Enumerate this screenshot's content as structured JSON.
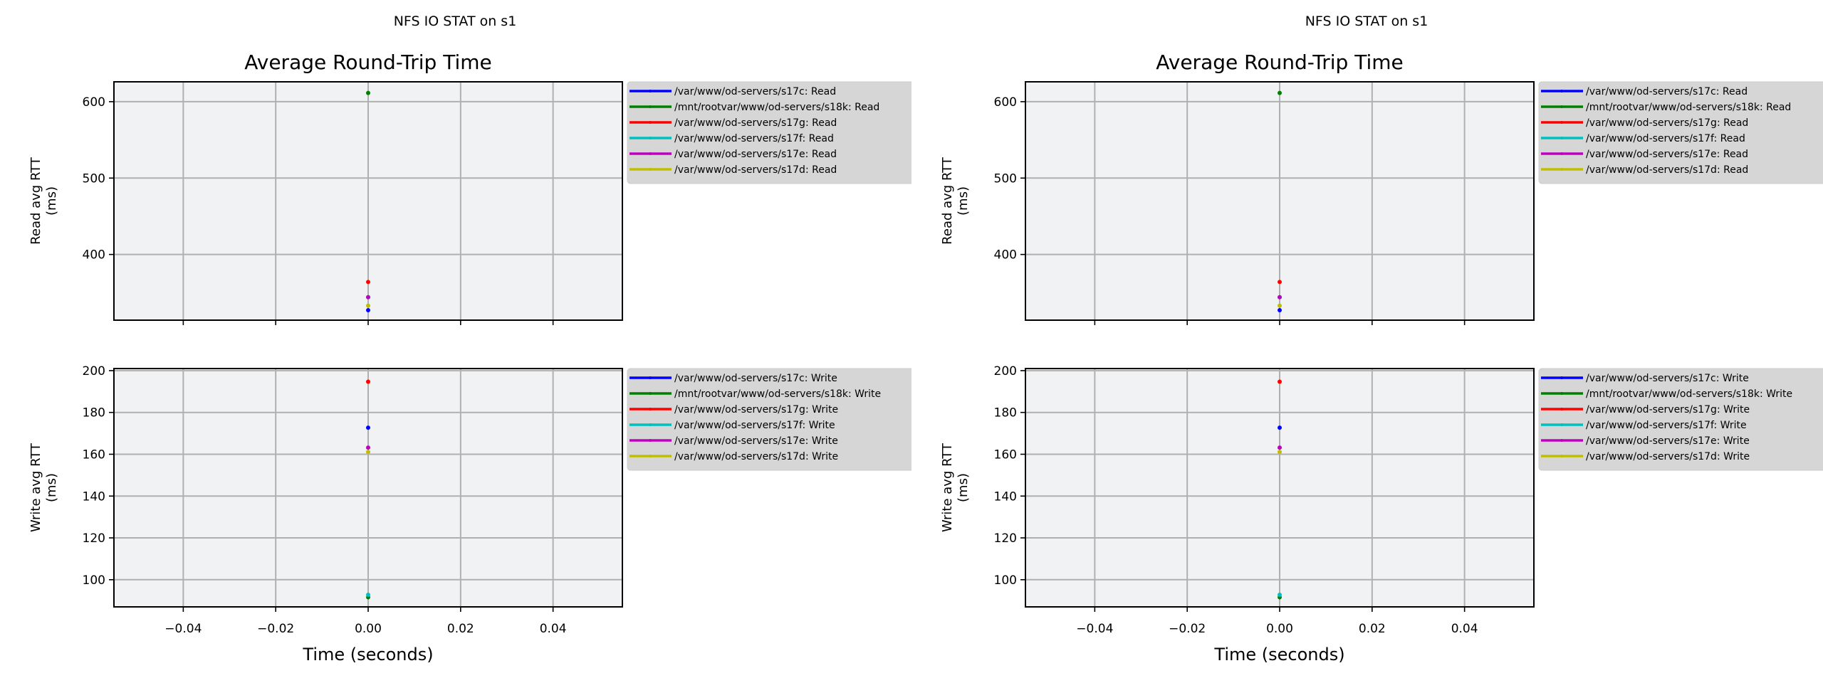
{
  "chart_data": [
    {
      "type": "scatter",
      "suptitle": "NFS IO STAT on s1",
      "title": "Average Round-Trip Time",
      "xlabel": "Time (seconds)",
      "xlim": [
        -0.055,
        0.055
      ],
      "xticks": [
        -0.04,
        -0.02,
        0.0,
        0.02,
        0.04
      ],
      "xtick_labels": [
        "−0.04",
        "−0.02",
        "0.00",
        "0.02",
        "0.04"
      ],
      "grid": true,
      "legend_placement": "outside-right",
      "subplots": [
        {
          "ylabel": [
            "Read avg RTT",
            "(ms)"
          ],
          "ylim": [
            314,
            626
          ],
          "yticks": [
            400,
            500,
            600
          ],
          "series": [
            {
              "name": "/var/www/od-servers/s17c: Read",
              "color": "#0000ff",
              "x": [
                0
              ],
              "y": [
                327
              ]
            },
            {
              "name": "/mnt/rootvar/www/od-servers/s18k: Read",
              "color": "#008000",
              "x": [
                0
              ],
              "y": [
                611.5
              ]
            },
            {
              "name": "/var/www/od-servers/s17g: Read",
              "color": "#ff0000",
              "x": [
                0
              ],
              "y": [
                364
              ]
            },
            {
              "name": "/var/www/od-servers/s17f: Read",
              "color": "#00bfbf",
              "x": [
                0
              ],
              "y": [
                344
              ]
            },
            {
              "name": "/var/www/od-servers/s17e: Read",
              "color": "#bf00bf",
              "x": [
                0
              ],
              "y": [
                344
              ]
            },
            {
              "name": "/var/www/od-servers/s17d: Read",
              "color": "#bfbf00",
              "x": [
                0
              ],
              "y": [
                333
              ]
            }
          ]
        },
        {
          "ylabel": [
            "Write avg RTT",
            "(ms)"
          ],
          "ylim": [
            87,
            201
          ],
          "yticks": [
            100,
            120,
            140,
            160,
            180,
            200
          ],
          "series": [
            {
              "name": "/var/www/od-servers/s17c: Write",
              "color": "#0000ff",
              "x": [
                0
              ],
              "y": [
                172.7
              ]
            },
            {
              "name": "/mnt/rootvar/www/od-servers/s18k: Write",
              "color": "#008000",
              "x": [
                0
              ],
              "y": [
                91.6
              ]
            },
            {
              "name": "/var/www/od-servers/s17g: Write",
              "color": "#ff0000",
              "x": [
                0
              ],
              "y": [
                194.7
              ]
            },
            {
              "name": "/var/www/od-servers/s17f: Write",
              "color": "#00bfbf",
              "x": [
                0
              ],
              "y": [
                92.8
              ]
            },
            {
              "name": "/var/www/od-servers/s17e: Write",
              "color": "#bf00bf",
              "x": [
                0
              ],
              "y": [
                163.2
              ]
            },
            {
              "name": "/var/www/od-servers/s17d: Write",
              "color": "#bfbf00",
              "x": [
                0
              ],
              "y": [
                161.1
              ]
            }
          ]
        }
      ]
    },
    {
      "type": "scatter",
      "suptitle": "NFS IO STAT on s1",
      "title": "Average Round-Trip Time",
      "xlabel": "Time (seconds)",
      "xlim": [
        -0.055,
        0.055
      ],
      "xticks": [
        -0.04,
        -0.02,
        0.0,
        0.02,
        0.04
      ],
      "xtick_labels": [
        "−0.04",
        "−0.02",
        "0.00",
        "0.02",
        "0.04"
      ],
      "grid": true,
      "legend_placement": "outside-right",
      "subplots": [
        {
          "ylabel": [
            "Read avg RTT",
            "(ms)"
          ],
          "ylim": [
            314,
            626
          ],
          "yticks": [
            400,
            500,
            600
          ],
          "series": [
            {
              "name": "/var/www/od-servers/s17c: Read",
              "color": "#0000ff",
              "x": [
                0
              ],
              "y": [
                327
              ]
            },
            {
              "name": "/mnt/rootvar/www/od-servers/s18k: Read",
              "color": "#008000",
              "x": [
                0
              ],
              "y": [
                611.5
              ]
            },
            {
              "name": "/var/www/od-servers/s17g: Read",
              "color": "#ff0000",
              "x": [
                0
              ],
              "y": [
                364
              ]
            },
            {
              "name": "/var/www/od-servers/s17f: Read",
              "color": "#00bfbf",
              "x": [
                0
              ],
              "y": [
                344
              ]
            },
            {
              "name": "/var/www/od-servers/s17e: Read",
              "color": "#bf00bf",
              "x": [
                0
              ],
              "y": [
                344
              ]
            },
            {
              "name": "/var/www/od-servers/s17d: Read",
              "color": "#bfbf00",
              "x": [
                0
              ],
              "y": [
                333
              ]
            }
          ]
        },
        {
          "ylabel": [
            "Write avg RTT",
            "(ms)"
          ],
          "ylim": [
            87,
            201
          ],
          "yticks": [
            100,
            120,
            140,
            160,
            180,
            200
          ],
          "series": [
            {
              "name": "/var/www/od-servers/s17c: Write",
              "color": "#0000ff",
              "x": [
                0
              ],
              "y": [
                172.7
              ]
            },
            {
              "name": "/mnt/rootvar/www/od-servers/s18k: Write",
              "color": "#008000",
              "x": [
                0
              ],
              "y": [
                91.6
              ]
            },
            {
              "name": "/var/www/od-servers/s17g: Write",
              "color": "#ff0000",
              "x": [
                0
              ],
              "y": [
                194.7
              ]
            },
            {
              "name": "/var/www/od-servers/s17f: Write",
              "color": "#00bfbf",
              "x": [
                0
              ],
              "y": [
                92.8
              ]
            },
            {
              "name": "/var/www/od-servers/s17e: Write",
              "color": "#bf00bf",
              "x": [
                0
              ],
              "y": [
                163.2
              ]
            },
            {
              "name": "/var/www/od-servers/s17d: Write",
              "color": "#bfbf00",
              "x": [
                0
              ],
              "y": [
                161.1
              ]
            }
          ]
        }
      ]
    }
  ]
}
